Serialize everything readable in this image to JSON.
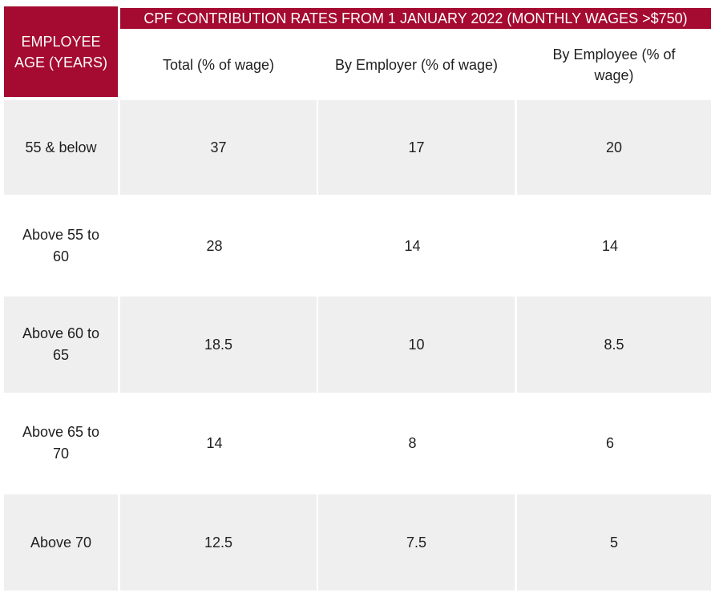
{
  "table": {
    "title": "CPF CONTRIBUTION RATES FROM 1 JANUARY 2022 (MONTHLY WAGES >$750)",
    "age_header": "EMPLOYEE AGE (YEARS)",
    "columns": [
      "Total (% of wage)",
      "By Employer (% of wage)",
      "By Employee (% of wage)"
    ],
    "rows": [
      {
        "age": "55 & below",
        "total": "37",
        "employer": "17",
        "employee": "20"
      },
      {
        "age": "Above 55 to 60",
        "total": "28",
        "employer": "14",
        "employee": "14"
      },
      {
        "age": "Above 60 to 65",
        "total": "18.5",
        "employer": "10",
        "employee": "8.5"
      },
      {
        "age": "Above 65 to 70",
        "total": "14",
        "employer": "8",
        "employee": "6"
      },
      {
        "age": "Above 70",
        "total": "12.5",
        "employer": "7.5",
        "employee": "5"
      }
    ],
    "colors": {
      "header_bg": "#a50a30",
      "header_text": "#ffffff",
      "shaded_row": "#efefef"
    }
  }
}
